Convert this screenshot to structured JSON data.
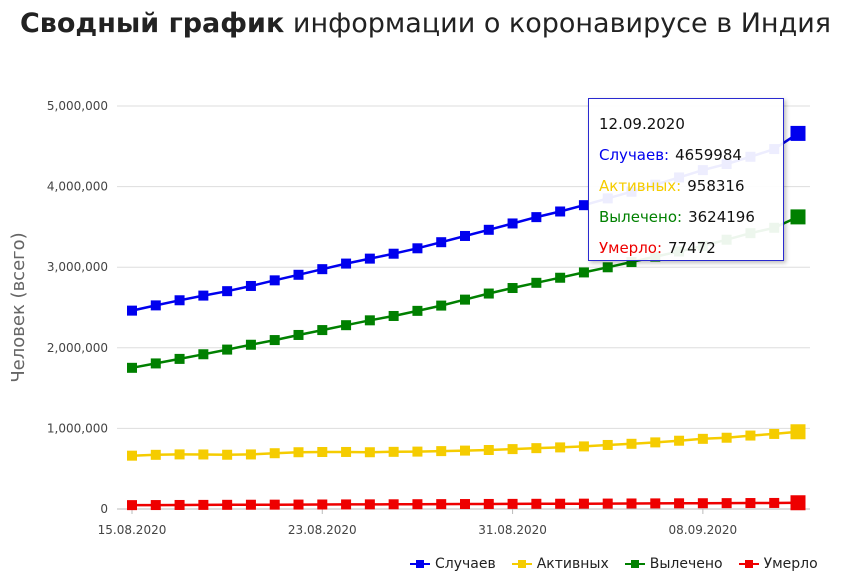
{
  "title": {
    "bold": "Сводный график",
    "rest": "информации о коронавирусе в Индия"
  },
  "chart_data": {
    "type": "line",
    "title": "Сводный график информации о коронавирусе в Индия",
    "ylabel": "Человек (всего)",
    "xlabel": "",
    "ylim": [
      0,
      5000000
    ],
    "yticks": [
      "0",
      "1,000,000",
      "2,000,000",
      "3,000,000",
      "4,000,000",
      "5,000,000"
    ],
    "xticks": [
      "15.08.2020",
      "23.08.2020",
      "31.08.2020",
      "08.09.2020"
    ],
    "x": [
      "15.08.2020",
      "16.08.2020",
      "17.08.2020",
      "18.08.2020",
      "19.08.2020",
      "20.08.2020",
      "21.08.2020",
      "22.08.2020",
      "23.08.2020",
      "24.08.2020",
      "25.08.2020",
      "26.08.2020",
      "27.08.2020",
      "28.08.2020",
      "29.08.2020",
      "30.08.2020",
      "31.08.2020",
      "01.09.2020",
      "02.09.2020",
      "03.09.2020",
      "04.09.2020",
      "05.09.2020",
      "06.09.2020",
      "07.09.2020",
      "08.09.2020",
      "09.09.2020",
      "10.09.2020",
      "11.09.2020",
      "12.09.2020"
    ],
    "grid": true,
    "legend_position": "bottom-right",
    "series": [
      {
        "name": "Случаев",
        "color": "#0000ee",
        "values": [
          2461190,
          2526192,
          2589682,
          2647663,
          2702742,
          2767273,
          2836925,
          2905825,
          2975701,
          3044940,
          3106348,
          3167323,
          3234474,
          3310234,
          3387500,
          3463972,
          3542733,
          3621245,
          3691166,
          3769523,
          3853406,
          3936747,
          4023179,
          4113811,
          4204613,
          4280422,
          4370128,
          4465863,
          4659984
        ]
      },
      {
        "name": "Активных",
        "color": "#f5cc00",
        "values": [
          661595,
          672195,
          677444,
          676514,
          673166,
          676900,
          692028,
          704348,
          707267,
          707668,
          704348,
          709120,
          712115,
          718201,
          724583,
          732020,
          743191,
          755048,
          764244,
          776638,
          794452,
          809020,
          826542,
          847100,
          870430,
          884190,
          911220,
          931300,
          958316
        ]
      },
      {
        "name": "Вылечено",
        "color": "#008000",
        "values": [
          1751555,
          1806135,
          1862258,
          1919842,
          1977779,
          2037870,
          2095935,
          2159281,
          2219965,
          2280573,
          2340850,
          2394798,
          2458339,
          2523771,
          2597637,
          2673209,
          2741765,
          2806326,
          2869196,
          2935203,
          2998947,
          3064087,
          3131356,
          3194560,
          3265000,
          3341310,
          3422100,
          3489150,
          3624196
        ]
      },
      {
        "name": "Умерло",
        "color": "#ee0000",
        "values": [
          48040,
          48941,
          49980,
          50921,
          51797,
          52889,
          53866,
          54849,
          55794,
          56706,
          57542,
          58390,
          59449,
          60472,
          61529,
          62550,
          63498,
          64469,
          65288,
          66333,
          67376,
          68472,
          69561,
          70626,
          71642,
          72775,
          73890,
          75062,
          77472
        ]
      }
    ],
    "tooltip": {
      "date": "12.09.2020",
      "rows": [
        {
          "label": "Случаев:",
          "value": "4659984",
          "color": "#0000ee"
        },
        {
          "label": "Активных:",
          "value": "958316",
          "color": "#f5cc00"
        },
        {
          "label": "Вылечено:",
          "value": "3624196",
          "color": "#008000"
        },
        {
          "label": "Умерло:",
          "value": "77472",
          "color": "#ee0000"
        }
      ]
    }
  }
}
